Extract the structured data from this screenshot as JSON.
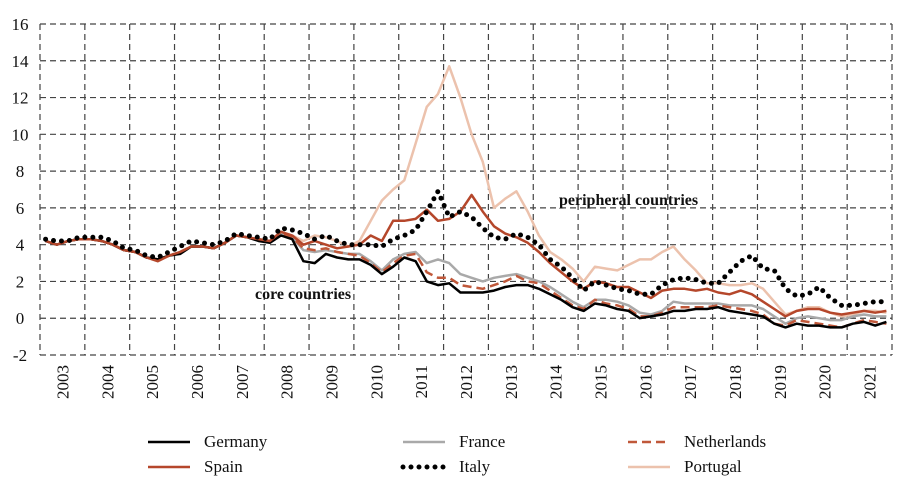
{
  "chart_data": {
    "type": "line",
    "title": "",
    "xlabel": "",
    "ylabel": "",
    "ylim": [
      -2,
      16
    ],
    "yticks": [
      -2,
      0,
      2,
      4,
      6,
      8,
      10,
      12,
      14,
      16
    ],
    "xlim": [
      2003,
      2022
    ],
    "xtick_labels": [
      "2003",
      "2004",
      "2005",
      "2006",
      "2007",
      "2008",
      "2009",
      "2010",
      "2011",
      "2012",
      "2013",
      "2014",
      "2015",
      "2016",
      "2017",
      "2018",
      "2019",
      "2020",
      "2021"
    ],
    "grid": true,
    "legend_position": "bottom",
    "x_start": 2003,
    "x_step": 0.25,
    "annotations": [
      {
        "text": "core countries",
        "x": 2009.3,
        "y": 1.3
      },
      {
        "text": "peripheral countries",
        "x": 2016.6,
        "y": 6.5
      }
    ],
    "series": [
      {
        "name": "Germany",
        "color": "#000000",
        "style": "solid",
        "values": [
          4.2,
          4.0,
          4.2,
          4.3,
          4.3,
          4.2,
          4.0,
          3.7,
          3.6,
          3.3,
          3.2,
          3.4,
          3.5,
          3.9,
          3.9,
          3.8,
          4.1,
          4.5,
          4.4,
          4.2,
          4.1,
          4.5,
          4.3,
          3.1,
          3.0,
          3.5,
          3.3,
          3.2,
          3.2,
          2.9,
          2.4,
          2.8,
          3.3,
          3.1,
          2.0,
          1.8,
          1.9,
          1.4,
          1.4,
          1.4,
          1.5,
          1.7,
          1.8,
          1.8,
          1.6,
          1.3,
          1.0,
          0.6,
          0.4,
          0.8,
          0.7,
          0.5,
          0.4,
          0.0,
          0.1,
          0.2,
          0.4,
          0.4,
          0.5,
          0.5,
          0.6,
          0.4,
          0.3,
          0.2,
          0.1,
          -0.3,
          -0.5,
          -0.3,
          -0.4,
          -0.4,
          -0.5,
          -0.5,
          -0.3,
          -0.2,
          -0.4,
          -0.2
        ]
      },
      {
        "name": "France",
        "color": "#a9a9a9",
        "style": "solid",
        "values": [
          4.2,
          4.0,
          4.2,
          4.3,
          4.3,
          4.2,
          4.0,
          3.7,
          3.6,
          3.3,
          3.2,
          3.4,
          3.6,
          3.9,
          3.9,
          3.8,
          4.1,
          4.5,
          4.4,
          4.3,
          4.2,
          4.6,
          4.4,
          3.7,
          3.6,
          3.7,
          3.6,
          3.5,
          3.5,
          3.1,
          2.6,
          3.2,
          3.5,
          3.6,
          3.0,
          3.2,
          3.0,
          2.4,
          2.2,
          2.0,
          2.2,
          2.3,
          2.4,
          2.2,
          2.0,
          1.7,
          1.3,
          0.9,
          0.6,
          1.0,
          1.0,
          0.9,
          0.7,
          0.3,
          0.2,
          0.4,
          0.9,
          0.8,
          0.8,
          0.8,
          0.8,
          0.7,
          0.7,
          0.7,
          0.5,
          0.1,
          -0.3,
          0.0,
          0.1,
          0.0,
          -0.1,
          -0.1,
          0.1,
          0.2,
          0.1,
          0.1
        ]
      },
      {
        "name": "Netherlands",
        "color": "#c0583a",
        "style": "dashed",
        "values": [
          4.2,
          4.0,
          4.2,
          4.3,
          4.3,
          4.2,
          4.0,
          3.7,
          3.6,
          3.3,
          3.2,
          3.4,
          3.6,
          3.9,
          3.9,
          3.8,
          4.1,
          4.5,
          4.4,
          4.3,
          4.2,
          4.6,
          4.4,
          3.8,
          3.7,
          3.8,
          3.6,
          3.5,
          3.4,
          3.0,
          2.5,
          3.0,
          3.4,
          3.5,
          2.5,
          2.2,
          2.2,
          1.8,
          1.7,
          1.6,
          1.8,
          2.0,
          2.3,
          2.0,
          1.9,
          1.5,
          1.1,
          0.7,
          0.5,
          1.0,
          0.8,
          0.7,
          0.5,
          0.1,
          0.1,
          0.3,
          0.6,
          0.6,
          0.6,
          0.6,
          0.7,
          0.6,
          0.5,
          0.4,
          0.2,
          -0.3,
          -0.4,
          -0.1,
          -0.2,
          -0.3,
          -0.4,
          -0.5,
          -0.3,
          -0.1,
          -0.2,
          -0.3
        ]
      },
      {
        "name": "Spain",
        "color": "#b5472b",
        "style": "solid",
        "values": [
          4.2,
          4.0,
          4.2,
          4.3,
          4.3,
          4.2,
          4.0,
          3.7,
          3.6,
          3.3,
          3.1,
          3.4,
          3.6,
          3.9,
          3.9,
          3.8,
          4.1,
          4.5,
          4.4,
          4.3,
          4.2,
          4.7,
          4.5,
          4.0,
          4.2,
          4.0,
          3.8,
          3.9,
          4.0,
          4.5,
          4.2,
          5.3,
          5.3,
          5.4,
          5.9,
          5.3,
          5.4,
          5.8,
          6.7,
          5.8,
          5.0,
          4.6,
          4.4,
          4.1,
          3.6,
          3.0,
          2.5,
          2.0,
          1.6,
          2.0,
          1.9,
          1.7,
          1.7,
          1.4,
          1.1,
          1.5,
          1.6,
          1.6,
          1.5,
          1.6,
          1.4,
          1.3,
          1.5,
          1.3,
          0.9,
          0.5,
          0.1,
          0.4,
          0.5,
          0.5,
          0.3,
          0.2,
          0.3,
          0.4,
          0.3,
          0.4
        ]
      },
      {
        "name": "Italy",
        "color": "#000000",
        "style": "dotted",
        "values": [
          4.3,
          4.2,
          4.2,
          4.4,
          4.4,
          4.4,
          4.2,
          3.8,
          3.7,
          3.4,
          3.3,
          3.6,
          3.9,
          4.2,
          4.1,
          4.0,
          4.2,
          4.6,
          4.5,
          4.4,
          4.3,
          4.9,
          4.8,
          4.6,
          4.3,
          4.5,
          4.2,
          4.0,
          4.0,
          4.0,
          3.9,
          4.3,
          4.5,
          4.8,
          5.8,
          6.9,
          5.5,
          5.8,
          5.5,
          4.9,
          4.4,
          4.3,
          4.6,
          4.4,
          4.0,
          3.2,
          2.8,
          2.2,
          1.5,
          2.0,
          1.8,
          1.6,
          1.5,
          1.3,
          1.3,
          1.8,
          2.1,
          2.2,
          2.1,
          1.9,
          1.9,
          2.5,
          3.1,
          3.4,
          2.7,
          2.6,
          1.6,
          1.2,
          1.3,
          1.7,
          1.1,
          0.7,
          0.7,
          0.8,
          0.9,
          0.9
        ]
      },
      {
        "name": "Portugal",
        "color": "#ecc2ad",
        "style": "solid",
        "values": [
          4.2,
          4.0,
          4.2,
          4.3,
          4.3,
          4.2,
          4.0,
          3.7,
          3.6,
          3.3,
          3.2,
          3.4,
          3.6,
          3.9,
          3.9,
          3.8,
          4.1,
          4.5,
          4.4,
          4.3,
          4.2,
          4.7,
          4.5,
          4.2,
          4.5,
          4.4,
          4.2,
          3.9,
          4.2,
          5.3,
          6.4,
          7.0,
          7.5,
          9.5,
          11.5,
          12.2,
          13.7,
          12.0,
          10.0,
          8.5,
          6.0,
          6.5,
          6.9,
          5.8,
          4.5,
          3.6,
          3.2,
          2.7,
          2.0,
          2.8,
          2.7,
          2.6,
          2.9,
          3.2,
          3.2,
          3.6,
          3.9,
          3.2,
          2.6,
          1.9,
          1.9,
          1.8,
          1.8,
          1.9,
          1.6,
          0.9,
          0.2,
          0.4,
          0.6,
          0.6,
          0.3,
          0.1,
          0.2,
          0.4,
          0.4,
          0.3
        ]
      }
    ]
  }
}
